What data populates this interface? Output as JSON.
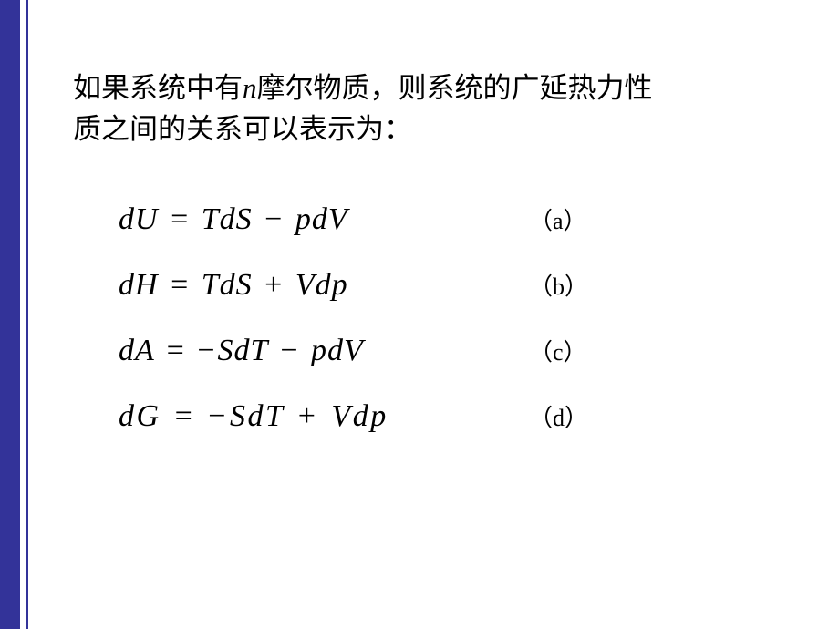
{
  "intro": {
    "part1": "如果系统中有",
    "n": "n",
    "part2": "摩尔物质，则系统的广延热力性",
    "part3": "质之间的关系可以表示为："
  },
  "equations": [
    {
      "label": "（a）",
      "lhs": "dU",
      "t1": "T",
      "d1": "dS",
      "sign": "−",
      "t2": "p",
      "d2": "dV"
    },
    {
      "label": "（b）",
      "lhs": "dH",
      "t1": "T",
      "d1": "dS",
      "sign": "+",
      "t2": "V",
      "d2": "dp"
    },
    {
      "label": "（c）",
      "lhs": "dA",
      "neg1": "−",
      "t1": "S",
      "d1": "dT",
      "sign": "−",
      "t2": "p",
      "d2": "dV"
    },
    {
      "label": "（d）",
      "lhs": "dG",
      "neg1": "−",
      "t1": "S",
      "d1": "dT",
      "sign": "+",
      "t2": "V",
      "d2": "dp"
    }
  ],
  "colors": {
    "border": "#333399",
    "background": "#ffffff",
    "text": "#000000"
  },
  "fonts": {
    "body": "SimSun 31px",
    "equation": "Times New Roman italic 34px",
    "label": "SimSun 26px"
  }
}
